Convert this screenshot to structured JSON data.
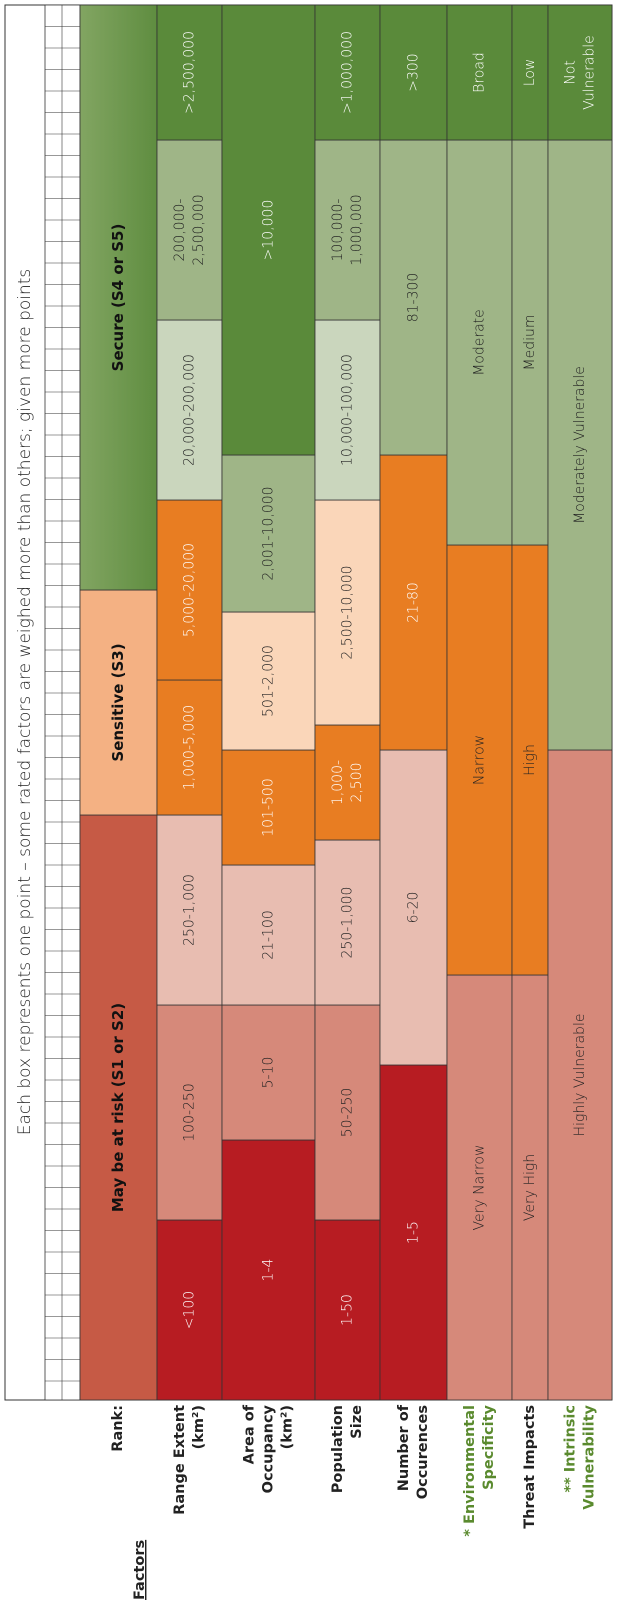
{
  "header": "Each box represents one point – some rated factors are weighed more than others; given more points",
  "rank": {
    "label": "Rank:",
    "cells": [
      "May be at risk (S1 or S2)",
      "Sensitive (S3)",
      "Secure (S4 or S5)"
    ]
  },
  "factors_heading": "Factors",
  "rows": [
    {
      "label": [
        "Range Extent",
        "(km²)"
      ],
      "cells": [
        "<100",
        "100-250",
        "250-1,000",
        "1,000-5,000",
        "5,000-20,000",
        "20,000-200,000",
        "200,000-2,500,000",
        ">2,500,000"
      ]
    },
    {
      "label": [
        "Area of",
        "Occupancy",
        "(km²)"
      ],
      "cells": [
        "1-4",
        "5-10",
        "21-100",
        "101-500",
        "501-2,000",
        "2,001-10,000",
        ">10,000"
      ]
    },
    {
      "label": [
        "Population",
        "Size"
      ],
      "cells": [
        "1-50",
        "50-250",
        "250-1,000",
        "1,000-2,500",
        "2,500-10,000",
        "10,000-100,000",
        "100,000-1,000,000",
        ">1,000,000"
      ]
    },
    {
      "label": [
        "Number of",
        "Occurences"
      ],
      "cells": [
        "1-5",
        "6-20",
        "21-80",
        "81-300",
        ">300"
      ]
    },
    {
      "label": [
        "* Environmental",
        "Specificity"
      ],
      "cells": [
        "Very Narrow",
        "Narrow",
        "Moderate",
        "Broad"
      ]
    },
    {
      "label": [
        "Threat Impacts"
      ],
      "cells": [
        "Very High",
        "High",
        "Medium",
        "Low"
      ]
    },
    {
      "label": [
        "** Intrinsic",
        "Vulnerability"
      ],
      "cells": [
        "Highly Vulnerable",
        "Moderately Vulnerable",
        "Not Vulnerable"
      ]
    }
  ]
}
